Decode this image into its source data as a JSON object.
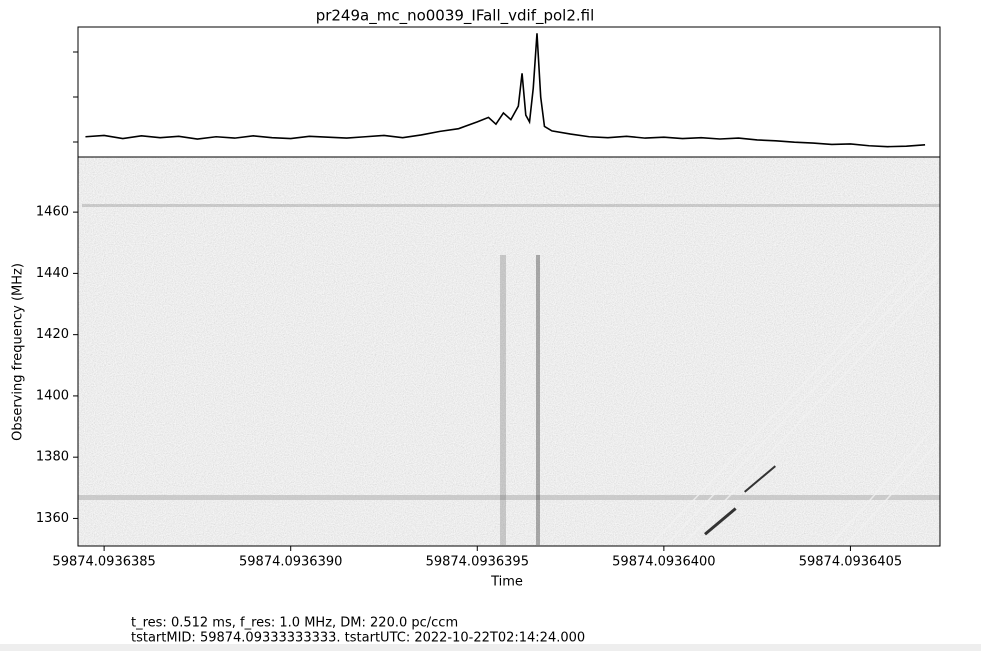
{
  "title": "pr249a_mc_no0039_IFall_vdif_pol2.fil",
  "chart_data": [
    {
      "type": "line",
      "x": [
        59874.09363845,
        59874.0936385,
        59874.09363855,
        59874.0936386,
        59874.09363865,
        59874.0936387,
        59874.09363875,
        59874.0936388,
        59874.09363885,
        59874.0936389,
        59874.09363895,
        59874.093639,
        59874.09363905,
        59874.0936391,
        59874.09363915,
        59874.0936392,
        59874.09363925,
        59874.0936393,
        59874.09363935,
        59874.0936394,
        59874.09363945,
        59874.0936395,
        59874.09363953,
        59874.09363955,
        59874.09363957,
        59874.09363959,
        59874.09363961,
        59874.09363962,
        59874.09363963,
        59874.09363964,
        59874.09363965,
        59874.09363966,
        59874.09363967,
        59874.09363968,
        59874.0936397,
        59874.09363975,
        59874.0936398,
        59874.09363985,
        59874.0936399,
        59874.09363995,
        59874.09364,
        59874.09364005,
        59874.0936401,
        59874.09364015,
        59874.0936402,
        59874.09364025,
        59874.0936403,
        59874.09364035,
        59874.0936404,
        59874.09364045,
        59874.0936405,
        59874.09364055,
        59874.0936406,
        59874.09364065,
        59874.0936407
      ],
      "series": [
        {
          "color": "#000000",
          "values": [
            0.12,
            0.15,
            0.08,
            0.14,
            0.1,
            0.13,
            0.07,
            0.12,
            0.09,
            0.14,
            0.1,
            0.08,
            0.13,
            0.11,
            0.09,
            0.12,
            0.15,
            0.1,
            0.16,
            0.24,
            0.3,
            0.45,
            0.55,
            0.4,
            0.65,
            0.5,
            0.8,
            1.53,
            0.6,
            0.45,
            1.2,
            2.42,
            1.0,
            0.35,
            0.25,
            0.18,
            0.12,
            0.1,
            0.13,
            0.09,
            0.11,
            0.08,
            0.1,
            0.07,
            0.09,
            0.05,
            0.03,
            0.0,
            -0.02,
            -0.05,
            -0.04,
            -0.08,
            -0.1,
            -0.09,
            -0.06
          ]
        }
      ],
      "xlim": [
        59874.09363843,
        59874.09364074
      ],
      "ylim": [
        -0.33,
        2.56
      ]
    },
    {
      "type": "image",
      "xlabel": "Time",
      "ylabel": "Observing frequency (MHz)",
      "xlim": [
        59874.09363843,
        59874.09364074
      ],
      "xticks": [
        59874.0936385,
        {
          "value": 59874.093639,
          "label": "59874.0936390"
        },
        59874.0936395,
        {
          "value": 59874.09364,
          "label": "59874.0936400"
        },
        59874.0936405
      ],
      "ylim": [
        1351,
        1478
      ],
      "yticks": [
        1360,
        1380,
        1400,
        1420,
        1440,
        1460
      ]
    }
  ],
  "notes": [
    "t_res: 0.512 ms, f_res: 1.0 MHz, DM: 220.0 pc/ccm",
    "tstartMID: 59874.09333333333. tstartUTC: 2022-10-22T02:14:24.000"
  ]
}
